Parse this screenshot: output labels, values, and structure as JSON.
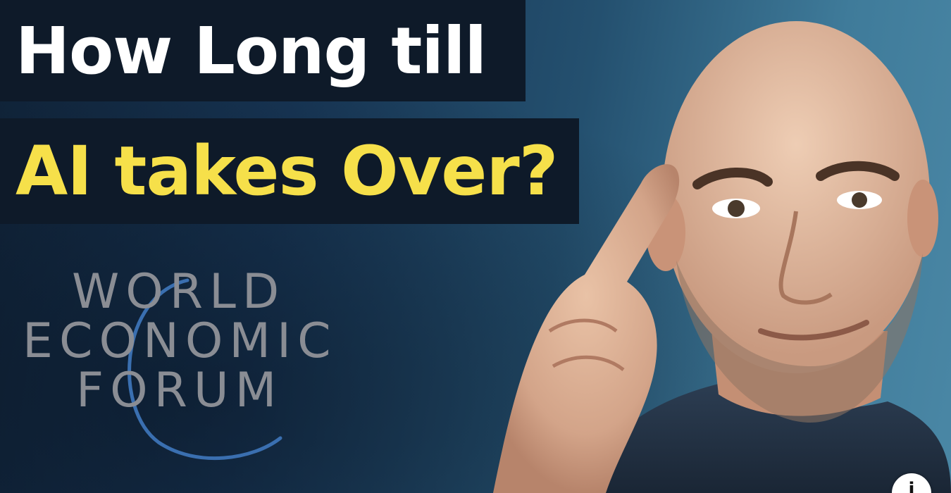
{
  "thumbnail": {
    "title_line_1": "How Long till",
    "title_line_2": "AI takes Over?",
    "title_line_1_color": "#ffffff",
    "title_line_2_color": "#f6e04a",
    "title_bar_color": "#0e1a29",
    "background_colors": [
      "#102338",
      "#24506f",
      "#4a87a5"
    ]
  },
  "logo": {
    "line_1": "WORLD",
    "line_2": "ECONOMIC",
    "line_3": "FORUM",
    "text_color": "#8a8d94",
    "arc_color": "#3a6fb0"
  },
  "person": {
    "icon": "bald-man-pointing-at-temple"
  },
  "overlay": {
    "info_button_icon": "info-icon"
  }
}
